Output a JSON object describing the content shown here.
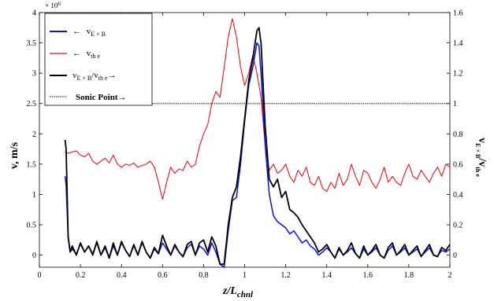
{
  "chart_data": {
    "type": "line",
    "xlabel": "z/L",
    "xlabel_sub": "chnl",
    "ylabel_left": "v, m/s",
    "ylabel_right": "v",
    "ylabel_right_sub": "E × B",
    "ylabel_right_tail": "/v",
    "ylabel_right_tail_sub": "th e",
    "left_exponent": "× 10",
    "left_exponent_power": "6",
    "xlim": [
      0,
      2
    ],
    "ylim_left": [
      -0.2,
      4
    ],
    "ylim_right": [
      -0.08,
      1.6
    ],
    "x_ticks": [
      "0",
      "0.2",
      "0.4",
      "0.6",
      "0.8",
      "1",
      "1.2",
      "1.4",
      "1.6",
      "1.8",
      "2"
    ],
    "y_left_ticks": [
      "0",
      "0.5",
      "1",
      "1.5",
      "2",
      "2.5",
      "3",
      "3.5",
      "4"
    ],
    "y_right_ticks": [
      "0",
      "0.2",
      "0.4",
      "0.6",
      "0.8",
      "1",
      "1.2",
      "1.4",
      "1.6"
    ],
    "legend_position": "top-left",
    "legend": [
      {
        "arrow": "←",
        "label": "v",
        "sub": "E × B",
        "tail": "",
        "tail_sub": "",
        "after": ""
      },
      {
        "arrow": "←",
        "label": "v",
        "sub": "th e",
        "tail": "",
        "tail_sub": "",
        "after": ""
      },
      {
        "arrow": "",
        "label": "v",
        "sub": "E × B",
        "tail": "/v",
        "tail_sub": "th e",
        "after": "→"
      },
      {
        "arrow": "",
        "label": "Sonic Point",
        "sub": "",
        "tail": "",
        "tail_sub": "",
        "after": "→"
      }
    ],
    "colors": {
      "v_exb": "#0a14d6",
      "v_the": "#e8141c",
      "ratio": "#000000",
      "sonic": "#555555"
    },
    "series": [
      {
        "axis": "left",
        "x": [
          0.125,
          0.13,
          0.14,
          0.15,
          0.16,
          0.18,
          0.2,
          0.22,
          0.24,
          0.26,
          0.28,
          0.3,
          0.32,
          0.34,
          0.36,
          0.38,
          0.4,
          0.42,
          0.44,
          0.46,
          0.48,
          0.5,
          0.52,
          0.54,
          0.56,
          0.58,
          0.6,
          0.62,
          0.64,
          0.66,
          0.68,
          0.7,
          0.72,
          0.74,
          0.76,
          0.78,
          0.8,
          0.82,
          0.84,
          0.86,
          0.88,
          0.9,
          0.92,
          0.94,
          0.96,
          0.98,
          1.0,
          1.02,
          1.04,
          1.06,
          1.07,
          1.08,
          1.1,
          1.12,
          1.14,
          1.16,
          1.18,
          1.2,
          1.22,
          1.24,
          1.26,
          1.28,
          1.3,
          1.32,
          1.34,
          1.36,
          1.38,
          1.4,
          1.42,
          1.44,
          1.46,
          1.48,
          1.5,
          1.52,
          1.54,
          1.56,
          1.58,
          1.6,
          1.62,
          1.64,
          1.66,
          1.68,
          1.7,
          1.72,
          1.74,
          1.76,
          1.78,
          1.8,
          1.82,
          1.84,
          1.86,
          1.88,
          1.9,
          1.92,
          1.94,
          1.96,
          1.98,
          2.0
        ],
        "values": [
          1.3,
          1.15,
          0.3,
          0.05,
          0.1,
          0.02,
          0.18,
          0.05,
          0.15,
          0.02,
          0.2,
          0.0,
          0.12,
          -0.05,
          0.15,
          0.0,
          0.2,
          0.08,
          -0.02,
          0.15,
          0.0,
          0.2,
          0.05,
          -0.05,
          0.1,
          0.02,
          0.2,
          0.1,
          0.0,
          0.15,
          0.05,
          -0.03,
          0.12,
          0.18,
          0.0,
          0.15,
          0.1,
          0.0,
          0.2,
          0.05,
          -0.15,
          -0.2,
          0.4,
          0.9,
          0.95,
          1.5,
          2.2,
          2.8,
          3.1,
          3.5,
          3.45,
          3.0,
          1.8,
          1.0,
          0.65,
          0.55,
          0.5,
          0.45,
          0.35,
          0.4,
          0.3,
          0.2,
          0.25,
          0.15,
          0.1,
          0.0,
          0.05,
          0.12,
          0.05,
          -0.05,
          0.1,
          0.0,
          0.05,
          0.12,
          0.02,
          -0.05,
          0.1,
          0.0,
          0.05,
          0.12,
          0.0,
          -0.05,
          0.08,
          0.15,
          0.0,
          0.05,
          0.12,
          0.0,
          0.05,
          0.1,
          -0.02,
          0.05,
          0.12,
          0.0,
          -0.02,
          0.08,
          0.05,
          0.1
        ]
      },
      {
        "axis": "left",
        "x": [
          0.125,
          0.14,
          0.16,
          0.18,
          0.2,
          0.22,
          0.24,
          0.26,
          0.28,
          0.3,
          0.32,
          0.34,
          0.36,
          0.38,
          0.4,
          0.42,
          0.44,
          0.46,
          0.48,
          0.5,
          0.52,
          0.54,
          0.56,
          0.58,
          0.6,
          0.62,
          0.64,
          0.66,
          0.68,
          0.7,
          0.72,
          0.74,
          0.76,
          0.78,
          0.8,
          0.82,
          0.84,
          0.86,
          0.88,
          0.9,
          0.92,
          0.94,
          0.96,
          0.98,
          1.0,
          1.02,
          1.04,
          1.06,
          1.08,
          1.1,
          1.12,
          1.14,
          1.16,
          1.18,
          1.2,
          1.22,
          1.24,
          1.26,
          1.28,
          1.3,
          1.32,
          1.34,
          1.36,
          1.38,
          1.4,
          1.42,
          1.44,
          1.46,
          1.48,
          1.5,
          1.52,
          1.54,
          1.56,
          1.58,
          1.6,
          1.62,
          1.64,
          1.66,
          1.68,
          1.7,
          1.72,
          1.74,
          1.76,
          1.78,
          1.8,
          1.82,
          1.84,
          1.86,
          1.88,
          1.9,
          1.92,
          1.94,
          1.96,
          1.98,
          2.0
        ],
        "values": [
          1.7,
          1.68,
          1.7,
          1.72,
          1.65,
          1.62,
          1.68,
          1.55,
          1.5,
          1.55,
          1.6,
          1.52,
          1.65,
          1.5,
          1.45,
          1.5,
          1.48,
          1.52,
          1.45,
          1.48,
          1.5,
          1.55,
          1.45,
          1.2,
          0.92,
          1.2,
          1.45,
          1.35,
          1.42,
          1.4,
          1.55,
          1.45,
          1.5,
          1.8,
          2.0,
          2.15,
          2.5,
          2.7,
          2.6,
          3.1,
          3.6,
          3.9,
          3.6,
          3.1,
          2.8,
          3.0,
          3.3,
          3.0,
          2.6,
          1.8,
          1.4,
          1.5,
          1.35,
          1.4,
          1.5,
          1.3,
          1.2,
          1.4,
          1.3,
          1.45,
          1.2,
          1.15,
          1.3,
          1.1,
          1.05,
          1.2,
          1.1,
          1.35,
          1.15,
          1.25,
          1.5,
          1.3,
          1.15,
          1.4,
          1.35,
          1.2,
          1.1,
          1.25,
          1.45,
          1.2,
          1.3,
          1.2,
          1.15,
          1.35,
          1.5,
          1.3,
          1.25,
          1.4,
          1.3,
          1.2,
          1.35,
          1.45,
          1.3,
          1.5,
          1.45
        ]
      },
      {
        "axis": "right",
        "x": [
          0.125,
          0.13,
          0.14,
          0.15,
          0.16,
          0.18,
          0.2,
          0.22,
          0.24,
          0.26,
          0.28,
          0.3,
          0.32,
          0.34,
          0.36,
          0.38,
          0.4,
          0.42,
          0.44,
          0.46,
          0.48,
          0.5,
          0.52,
          0.54,
          0.56,
          0.58,
          0.6,
          0.62,
          0.64,
          0.66,
          0.68,
          0.7,
          0.72,
          0.74,
          0.76,
          0.78,
          0.8,
          0.82,
          0.84,
          0.86,
          0.88,
          0.9,
          0.92,
          0.94,
          0.96,
          0.98,
          1.0,
          1.02,
          1.04,
          1.06,
          1.07,
          1.08,
          1.1,
          1.12,
          1.14,
          1.16,
          1.18,
          1.2,
          1.22,
          1.24,
          1.26,
          1.28,
          1.3,
          1.32,
          1.34,
          1.36,
          1.38,
          1.4,
          1.42,
          1.44,
          1.46,
          1.48,
          1.5,
          1.52,
          1.54,
          1.56,
          1.58,
          1.6,
          1.62,
          1.64,
          1.66,
          1.68,
          1.7,
          1.72,
          1.74,
          1.76,
          1.78,
          1.8,
          1.82,
          1.84,
          1.86,
          1.88,
          1.9,
          1.92,
          1.94,
          1.96,
          1.98,
          2.0
        ],
        "values": [
          0.76,
          0.7,
          0.12,
          0.02,
          0.06,
          0.0,
          0.08,
          0.02,
          0.06,
          0.0,
          0.09,
          0.0,
          0.06,
          -0.02,
          0.08,
          0.0,
          0.09,
          0.03,
          -0.01,
          0.07,
          0.0,
          0.09,
          0.02,
          -0.02,
          0.05,
          0.01,
          0.13,
          0.06,
          0.0,
          0.07,
          0.02,
          -0.01,
          0.07,
          0.09,
          0.0,
          0.08,
          0.1,
          0.02,
          0.12,
          0.06,
          -0.06,
          -0.06,
          0.2,
          0.38,
          0.45,
          0.65,
          0.9,
          1.15,
          1.3,
          1.48,
          1.5,
          1.4,
          0.85,
          0.5,
          0.45,
          0.5,
          0.38,
          0.42,
          0.3,
          0.28,
          0.25,
          0.2,
          0.16,
          0.12,
          0.08,
          0.02,
          0.04,
          0.07,
          0.02,
          -0.02,
          0.05,
          0.0,
          0.03,
          0.08,
          0.01,
          -0.02,
          0.06,
          0.0,
          0.03,
          0.07,
          0.0,
          -0.02,
          0.05,
          0.08,
          0.0,
          0.03,
          0.07,
          0.0,
          0.03,
          0.06,
          -0.01,
          0.03,
          0.07,
          0.0,
          -0.01,
          0.05,
          0.03,
          0.07
        ]
      },
      {
        "axis": "right",
        "x": [
          0.125,
          2.0
        ],
        "values": [
          1,
          1
        ]
      }
    ]
  }
}
